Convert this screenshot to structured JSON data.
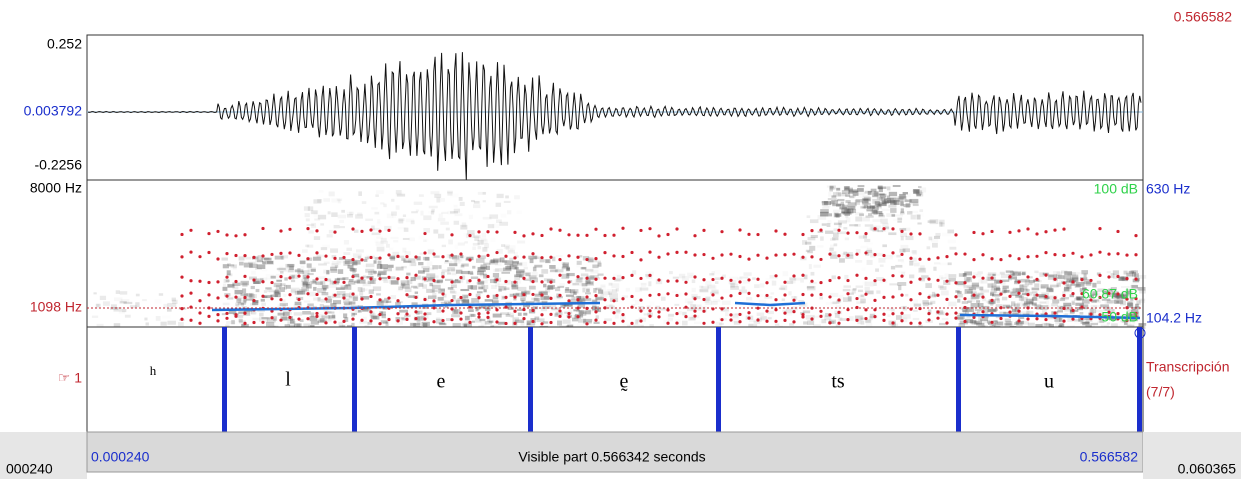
{
  "top_right_time": "0.566582",
  "waveform": {
    "max": "0.252",
    "center": "0.003792",
    "min": "-0.2256"
  },
  "spectrogram": {
    "top_freq": "8000 Hz",
    "cursor_freq": "1098 Hz",
    "intensity_max": "100 dB",
    "pitch_max": "630 Hz",
    "intensity_value": "60.87 dB",
    "intensity_min": "50 dB",
    "pitch_min": "104.2 Hz"
  },
  "tier": {
    "number": "☞ 1",
    "name": "Transcripción",
    "count": "(7/7)",
    "intervals": [
      "h",
      "l",
      "e",
      "ḛ",
      "ts",
      "u"
    ]
  },
  "footer": {
    "left_clip": "000240",
    "start": "0.000240",
    "visible": "Visible part 0.566342 seconds",
    "end": "0.566582",
    "right": "0.060365"
  }
}
